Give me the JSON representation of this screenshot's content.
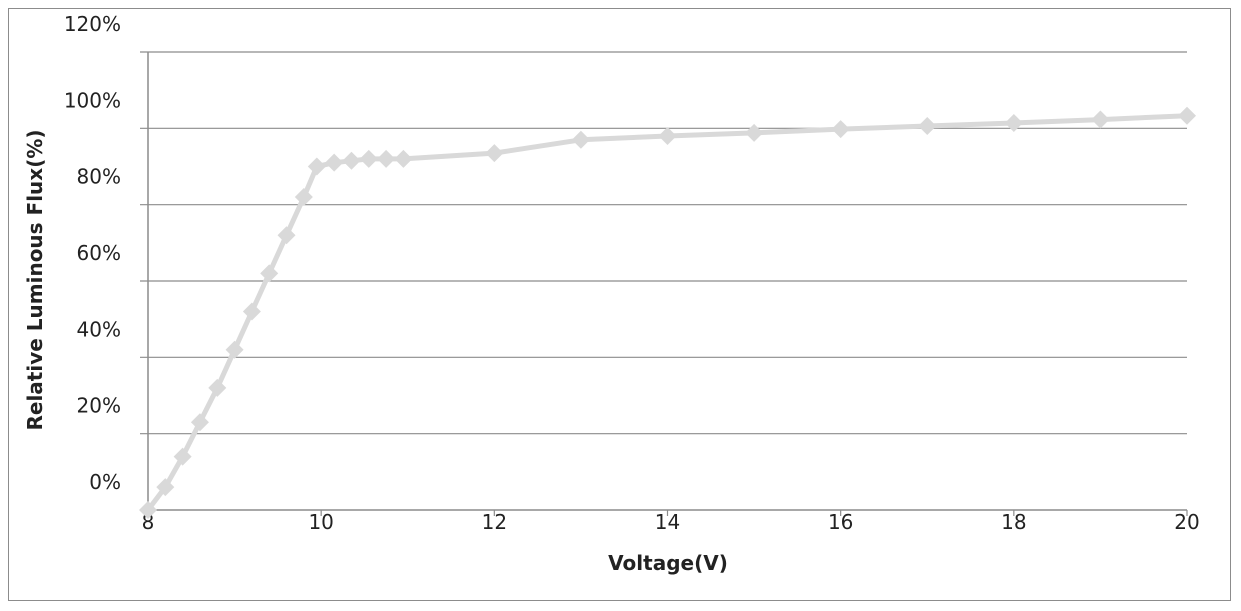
{
  "chart_data": {
    "type": "line",
    "title": "",
    "xlabel": "Voltage(V)",
    "ylabel": "Relative Luminous Flux(%)",
    "xlim": [
      8,
      20
    ],
    "ylim": [
      0,
      120
    ],
    "x_ticks": [
      "8",
      "10",
      "12",
      "14",
      "16",
      "18",
      "20"
    ],
    "y_ticks": [
      "0%",
      "20%",
      "40%",
      "60%",
      "80%",
      "100%",
      "120%"
    ],
    "grid": "horizontal",
    "legend": "none",
    "series_color": "#d9d9d9",
    "series": [
      {
        "points": [
          {
            "x": 8.0,
            "y": 0
          },
          {
            "x": 8.2,
            "y": 6
          },
          {
            "x": 8.4,
            "y": 14
          },
          {
            "x": 8.6,
            "y": 23
          },
          {
            "x": 8.8,
            "y": 32
          },
          {
            "x": 9.0,
            "y": 42
          },
          {
            "x": 9.2,
            "y": 52
          },
          {
            "x": 9.4,
            "y": 62
          },
          {
            "x": 9.6,
            "y": 72
          },
          {
            "x": 9.8,
            "y": 82
          },
          {
            "x": 9.95,
            "y": 90
          },
          {
            "x": 10.15,
            "y": 91
          },
          {
            "x": 10.35,
            "y": 91.5
          },
          {
            "x": 10.55,
            "y": 92
          },
          {
            "x": 10.75,
            "y": 92
          },
          {
            "x": 10.95,
            "y": 92
          },
          {
            "x": 12.0,
            "y": 93.5
          },
          {
            "x": 13.0,
            "y": 97
          },
          {
            "x": 14.0,
            "y": 98
          },
          {
            "x": 15.0,
            "y": 98.8
          },
          {
            "x": 16.0,
            "y": 99.8
          },
          {
            "x": 17.0,
            "y": 100.6
          },
          {
            "x": 18.0,
            "y": 101.4
          },
          {
            "x": 19.0,
            "y": 102.3
          },
          {
            "x": 20.0,
            "y": 103.3
          }
        ]
      }
    ]
  }
}
